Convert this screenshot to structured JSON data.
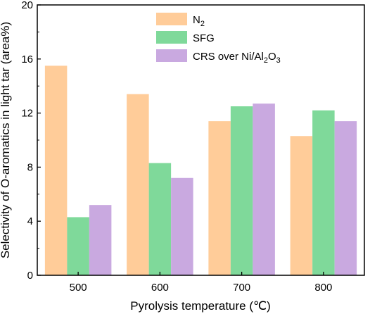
{
  "chart_data": {
    "type": "bar",
    "title": "",
    "xlabel": "Pyrolysis temperature (℃)",
    "ylabel": "Selectivity of O-aromatics in light tar (area%)",
    "categories": [
      "500",
      "600",
      "700",
      "800"
    ],
    "ylim": [
      0,
      20
    ],
    "yticks": [
      "0",
      "4",
      "8",
      "12",
      "16",
      "20"
    ],
    "grid": false,
    "legend_position": "top-right",
    "series": [
      {
        "name": "N",
        "name_sub": "2",
        "color": "#FFCC99",
        "values": [
          15.5,
          13.4,
          11.4,
          10.3
        ]
      },
      {
        "name": "SFG",
        "color": "#7FD99A",
        "values": [
          4.3,
          8.3,
          12.5,
          12.2
        ]
      },
      {
        "name": "CRS over Ni/Al",
        "name_sub": "2",
        "name_mid": "O",
        "name_sub2": "3",
        "color": "#C9A9E0",
        "values": [
          5.2,
          7.2,
          12.7,
          11.4
        ]
      }
    ]
  }
}
